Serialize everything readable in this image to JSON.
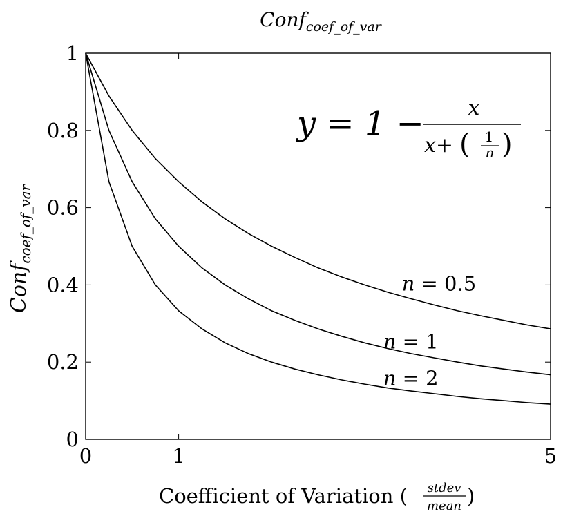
{
  "chart_data": {
    "type": "line",
    "title": {
      "base": "Conf",
      "sub": "coef_of_var"
    },
    "xlabel": {
      "text": "Coefficient of Variation (",
      "frac_num": "stdev",
      "frac_den": "mean",
      "close": ")"
    },
    "ylabel": {
      "base": "Conf",
      "sub": "coef_of_var"
    },
    "xlim": [
      0,
      5
    ],
    "ylim": [
      0,
      1
    ],
    "xticks": [
      0,
      1,
      5
    ],
    "yticks": [
      0,
      0.2,
      0.4,
      0.6,
      0.8,
      1
    ],
    "xtick_labels": [
      "0",
      "1",
      "5"
    ],
    "ytick_labels": [
      "0",
      "0.2",
      "0.4",
      "0.6",
      "0.8",
      "1"
    ],
    "grid": false,
    "formula": {
      "lhs": "y = 1 −",
      "num": "x",
      "den_prefix": "x+",
      "inner_num": "1",
      "inner_den": "n"
    },
    "x": [
      0,
      0.25,
      0.5,
      0.75,
      1,
      1.25,
      1.5,
      1.75,
      2,
      2.25,
      2.5,
      2.75,
      3,
      3.25,
      3.5,
      3.75,
      4,
      4.25,
      4.5,
      4.75,
      5
    ],
    "series": [
      {
        "name": "n = 0.5",
        "n": 0.5,
        "values": [
          1,
          0.889,
          0.8,
          0.727,
          0.667,
          0.615,
          0.571,
          0.533,
          0.5,
          0.471,
          0.444,
          0.421,
          0.4,
          0.381,
          0.364,
          0.348,
          0.333,
          0.32,
          0.308,
          0.296,
          0.286
        ]
      },
      {
        "name": "n = 1",
        "n": 1,
        "values": [
          1,
          0.8,
          0.667,
          0.571,
          0.5,
          0.444,
          0.4,
          0.364,
          0.333,
          0.308,
          0.286,
          0.267,
          0.25,
          0.235,
          0.222,
          0.211,
          0.2,
          0.19,
          0.182,
          0.174,
          0.167
        ]
      },
      {
        "name": "n = 2",
        "n": 2,
        "values": [
          1,
          0.667,
          0.5,
          0.4,
          0.333,
          0.286,
          0.25,
          0.222,
          0.2,
          0.182,
          0.167,
          0.154,
          0.143,
          0.133,
          0.125,
          0.118,
          0.111,
          0.105,
          0.1,
          0.095,
          0.091
        ]
      }
    ],
    "series_labels": [
      {
        "var": "n",
        "rest": " = 0.5",
        "at_x": 3.4,
        "at_y": 0.4
      },
      {
        "var": "n",
        "rest": " = 1",
        "at_x": 3.2,
        "at_y": 0.25
      },
      {
        "var": "n",
        "rest": " = 2",
        "at_x": 3.2,
        "at_y": 0.155
      }
    ],
    "line_color": "#000000"
  }
}
